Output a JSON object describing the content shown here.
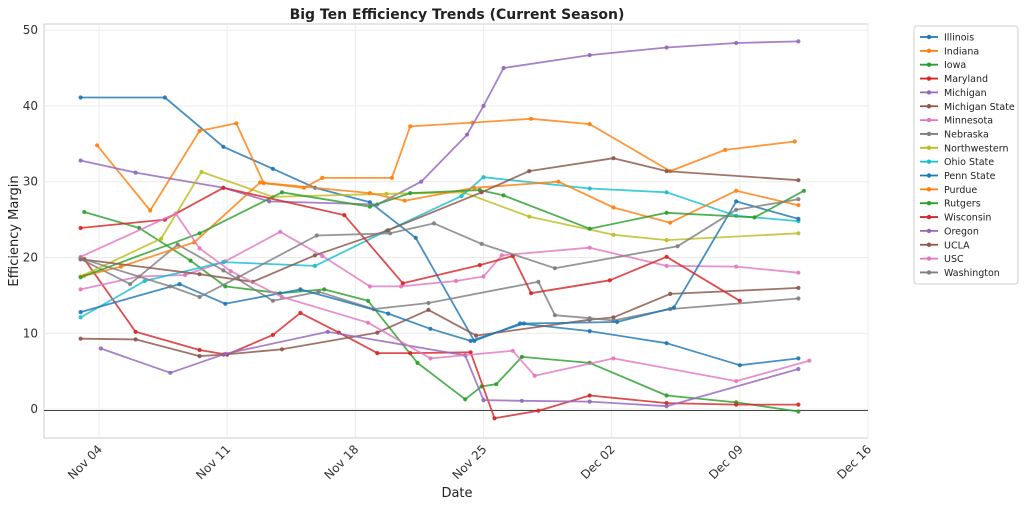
{
  "chart_data": {
    "type": "line",
    "title": "Big Ten Efficiency Trends (Current Season)",
    "xlabel": "Date",
    "ylabel": "Efficiency Margin",
    "x_tick_labels": [
      "Nov 04",
      "Nov 11",
      "Nov 18",
      "Nov 25",
      "Dec 02",
      "Dec 09",
      "Dec 16"
    ],
    "x_tick_days": [
      4,
      11,
      18,
      25,
      32,
      39,
      46
    ],
    "xlim": [
      1,
      46
    ],
    "ylim": [
      -3.8,
      50.8
    ],
    "yticks": [
      0,
      10,
      20,
      30,
      40,
      50
    ],
    "grid": true,
    "legend_position": "outside-right",
    "series": [
      {
        "name": "Illinois",
        "color": "#1f77b4",
        "points": [
          [
            3,
            41.1
          ],
          [
            7.6,
            41.1
          ],
          [
            10.8,
            34.6
          ],
          [
            13.5,
            31.7
          ],
          [
            15.8,
            29.2
          ],
          [
            18.8,
            27.3
          ],
          [
            21.3,
            22.6
          ],
          [
            24.5,
            9.0
          ],
          [
            27,
            11.3
          ],
          [
            30.8,
            10.3
          ],
          [
            35,
            8.7
          ],
          [
            39,
            5.8
          ],
          [
            42.2,
            6.7
          ]
        ]
      },
      {
        "name": "Indiana",
        "color": "#ff7f0e",
        "points": [
          [
            3.9,
            34.8
          ],
          [
            6.8,
            26.2
          ],
          [
            9.5,
            36.7
          ],
          [
            11.5,
            37.7
          ],
          [
            13,
            29.8
          ],
          [
            15.2,
            29.2
          ],
          [
            16.2,
            30.5
          ],
          [
            20,
            30.5
          ],
          [
            21,
            37.3
          ],
          [
            24.4,
            37.8
          ],
          [
            27.6,
            38.3
          ],
          [
            30.8,
            37.6
          ],
          [
            35.2,
            31.4
          ],
          [
            38.2,
            34.2
          ],
          [
            42,
            35.3
          ]
        ]
      },
      {
        "name": "Iowa",
        "color": "#2ca02c",
        "points": [
          [
            3.2,
            26.0
          ],
          [
            6.2,
            23.9
          ],
          [
            9,
            19.6
          ],
          [
            10.9,
            16.2
          ],
          [
            13.9,
            15.3
          ],
          [
            16.3,
            15.8
          ],
          [
            18.7,
            14.3
          ],
          [
            21.4,
            6.1
          ],
          [
            24,
            1.3
          ],
          [
            24.9,
            3.0
          ],
          [
            25.7,
            3.3
          ],
          [
            27.1,
            6.9
          ],
          [
            30.8,
            6.1
          ],
          [
            35,
            1.8
          ],
          [
            38.8,
            0.9
          ],
          [
            42.2,
            -0.3
          ]
        ]
      },
      {
        "name": "Maryland",
        "color": "#d62728",
        "points": [
          [
            3.2,
            19.8
          ],
          [
            6,
            10.2
          ],
          [
            9.5,
            7.8
          ],
          [
            11,
            7.2
          ],
          [
            13.5,
            9.8
          ],
          [
            15,
            12.7
          ],
          [
            17.1,
            10.1
          ],
          [
            19.2,
            7.4
          ],
          [
            21,
            7.4
          ],
          [
            24.3,
            7.5
          ],
          [
            25.6,
            -1.2
          ],
          [
            28,
            -0.2
          ],
          [
            30.8,
            1.8
          ],
          [
            35,
            0.8
          ],
          [
            38.8,
            0.6
          ],
          [
            42.2,
            0.6
          ]
        ]
      },
      {
        "name": "Michigan",
        "color": "#9467bd",
        "points": [
          [
            3,
            32.8
          ],
          [
            6,
            31.2
          ],
          [
            10.8,
            29.2
          ],
          [
            13.3,
            27.4
          ],
          [
            19.2,
            27.0
          ],
          [
            21.6,
            30.0
          ],
          [
            24.1,
            36.2
          ],
          [
            25,
            40.0
          ],
          [
            26.1,
            45.0
          ],
          [
            30.8,
            46.7
          ],
          [
            35,
            47.7
          ],
          [
            38.8,
            48.3
          ],
          [
            42.2,
            48.5
          ]
        ]
      },
      {
        "name": "Michigan State",
        "color": "#8c564b",
        "points": [
          [
            3,
            9.3
          ],
          [
            6,
            9.2
          ],
          [
            9.5,
            7.0
          ],
          [
            10.8,
            7.2
          ],
          [
            14,
            7.9
          ],
          [
            19.2,
            10.1
          ],
          [
            22,
            13.1
          ],
          [
            24.6,
            9.7
          ],
          [
            30.8,
            11.8
          ],
          [
            32.1,
            12.1
          ],
          [
            35.2,
            15.2
          ],
          [
            42.2,
            16.0
          ]
        ]
      },
      {
        "name": "Minnesota",
        "color": "#e377c2",
        "points": [
          [
            3,
            15.8
          ],
          [
            6.2,
            17.5
          ],
          [
            8.7,
            17.7
          ],
          [
            10.9,
            19.5
          ],
          [
            13.9,
            23.4
          ],
          [
            16.2,
            20.2
          ],
          [
            18.8,
            16.2
          ],
          [
            20.5,
            16.2
          ],
          [
            23.5,
            16.9
          ],
          [
            25,
            17.5
          ],
          [
            26,
            20.3
          ],
          [
            30.8,
            21.3
          ],
          [
            35,
            18.9
          ],
          [
            38.8,
            18.8
          ],
          [
            42.2,
            18.0
          ]
        ]
      },
      {
        "name": "Nebraska",
        "color": "#7f7f7f",
        "points": [
          [
            3,
            19.8
          ],
          [
            5.7,
            16.5
          ],
          [
            8.3,
            21.7
          ],
          [
            10.8,
            18.3
          ],
          [
            13.5,
            14.3
          ],
          [
            16,
            15.5
          ],
          [
            19,
            13.2
          ],
          [
            22,
            14.0
          ],
          [
            28,
            16.8
          ],
          [
            28.9,
            12.4
          ],
          [
            30.8,
            12.0
          ],
          [
            32.1,
            11.7
          ],
          [
            35.2,
            13.2
          ],
          [
            42.2,
            14.6
          ]
        ]
      },
      {
        "name": "Northwestern",
        "color": "#bcbd22",
        "points": [
          [
            3,
            17.5
          ],
          [
            7.4,
            22.5
          ],
          [
            9.6,
            31.3
          ],
          [
            13.5,
            28.0
          ],
          [
            19.7,
            28.4
          ],
          [
            23.9,
            28.6
          ],
          [
            27.5,
            25.4
          ],
          [
            32.1,
            23.0
          ],
          [
            35,
            22.3
          ],
          [
            42.2,
            23.2
          ]
        ]
      },
      {
        "name": "Ohio State",
        "color": "#17becf",
        "points": [
          [
            3,
            12.1
          ],
          [
            6.5,
            16.9
          ],
          [
            10.8,
            19.4
          ],
          [
            15.8,
            18.9
          ],
          [
            19.7,
            23.5
          ],
          [
            23.8,
            28.1
          ],
          [
            25,
            30.6
          ],
          [
            30.8,
            29.1
          ],
          [
            35,
            28.6
          ],
          [
            38.8,
            25.5
          ],
          [
            42.2,
            24.8
          ]
        ]
      },
      {
        "name": "Penn State",
        "color": "#1f77b4",
        "points": [
          [
            3,
            12.8
          ],
          [
            8.4,
            16.5
          ],
          [
            10.9,
            13.9
          ],
          [
            15,
            15.8
          ],
          [
            19.8,
            12.6
          ],
          [
            22.1,
            10.6
          ],
          [
            24.3,
            9.0
          ],
          [
            27.2,
            11.3
          ],
          [
            32.3,
            11.5
          ],
          [
            35.4,
            13.4
          ],
          [
            38.8,
            27.4
          ],
          [
            42.2,
            25.1
          ]
        ]
      },
      {
        "name": "Purdue",
        "color": "#ff7f0e",
        "points": [
          [
            3.2,
            17.6
          ],
          [
            5.2,
            18.8
          ],
          [
            9.2,
            22.0
          ],
          [
            12.8,
            29.9
          ],
          [
            18.8,
            28.5
          ],
          [
            20.7,
            27.5
          ],
          [
            24.5,
            29.2
          ],
          [
            29.1,
            30.0
          ],
          [
            32.1,
            26.6
          ],
          [
            35.2,
            24.6
          ],
          [
            38.8,
            28.8
          ],
          [
            42.2,
            26.9
          ]
        ]
      },
      {
        "name": "Rutgers",
        "color": "#2ca02c",
        "points": [
          [
            3,
            17.4
          ],
          [
            9.5,
            23.2
          ],
          [
            14,
            28.6
          ],
          [
            18.8,
            26.7
          ],
          [
            21,
            28.5
          ],
          [
            24.8,
            28.9
          ],
          [
            26.1,
            28.2
          ],
          [
            30.8,
            23.8
          ],
          [
            35,
            25.9
          ],
          [
            39.8,
            25.3
          ],
          [
            42.5,
            28.8
          ]
        ]
      },
      {
        "name": "Wisconsin",
        "color": "#d62728",
        "points": [
          [
            3,
            23.9
          ],
          [
            7.6,
            25.0
          ],
          [
            10.8,
            29.2
          ],
          [
            17.4,
            25.6
          ],
          [
            20.6,
            16.6
          ],
          [
            24.8,
            19.0
          ],
          [
            26.6,
            20.2
          ],
          [
            27.6,
            15.3
          ],
          [
            31.9,
            17.0
          ],
          [
            35,
            20.1
          ],
          [
            39,
            14.3
          ]
        ]
      },
      {
        "name": "Oregon",
        "color": "#9467bd",
        "points": [
          [
            4.1,
            8.0
          ],
          [
            7.9,
            4.8
          ],
          [
            10.9,
            7.3
          ],
          [
            16.5,
            10.2
          ],
          [
            24,
            7.1
          ],
          [
            25,
            1.2
          ],
          [
            27.1,
            1.1
          ],
          [
            30.8,
            1.0
          ],
          [
            35,
            0.4
          ],
          [
            42.2,
            5.3
          ]
        ]
      },
      {
        "name": "UCLA",
        "color": "#8c564b",
        "points": [
          [
            3,
            19.8
          ],
          [
            9.5,
            17.8
          ],
          [
            12.4,
            16.8
          ],
          [
            15.8,
            20.3
          ],
          [
            19.8,
            23.6
          ],
          [
            24.9,
            28.6
          ],
          [
            27.5,
            31.4
          ],
          [
            32.1,
            33.1
          ],
          [
            35,
            31.4
          ],
          [
            42.2,
            30.2
          ]
        ]
      },
      {
        "name": "USC",
        "color": "#e377c2",
        "points": [
          [
            3,
            20.1
          ],
          [
            8.2,
            25.8
          ],
          [
            9.5,
            21.2
          ],
          [
            11.2,
            18.2
          ],
          [
            14,
            14.8
          ],
          [
            18.7,
            11.4
          ],
          [
            22.1,
            6.7
          ],
          [
            26.6,
            7.7
          ],
          [
            27.8,
            4.4
          ],
          [
            32.1,
            6.7
          ],
          [
            38.8,
            3.7
          ],
          [
            42.8,
            6.4
          ]
        ]
      },
      {
        "name": "Washington",
        "color": "#7f7f7f",
        "points": [
          [
            3,
            19.9
          ],
          [
            7.9,
            16.2
          ],
          [
            9.5,
            14.8
          ],
          [
            11.6,
            17.4
          ],
          [
            15.9,
            22.9
          ],
          [
            19.9,
            23.2
          ],
          [
            22.3,
            24.5
          ],
          [
            24.9,
            21.8
          ],
          [
            28.9,
            18.6
          ],
          [
            35.6,
            21.5
          ],
          [
            38.8,
            26.3
          ],
          [
            42.2,
            27.7
          ]
        ]
      }
    ]
  }
}
